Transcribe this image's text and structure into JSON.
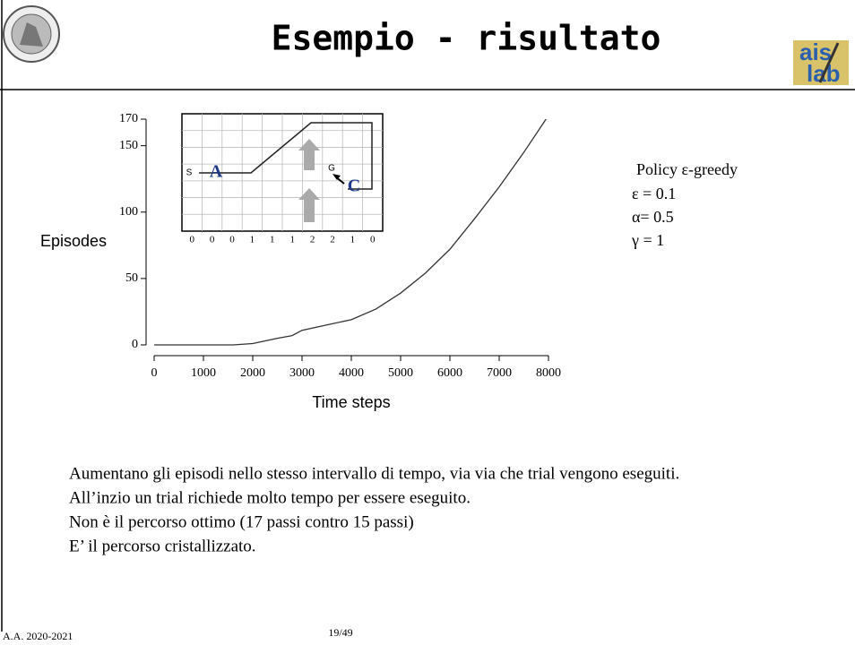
{
  "header": {
    "title": "Esempio - risultato"
  },
  "chart_data": {
    "type": "line",
    "ylabel": "Episodes",
    "xlabel": "Time steps",
    "x": [
      0,
      1600,
      2000,
      2500,
      2800,
      3000,
      3500,
      4000,
      4500,
      5000,
      5500,
      6000,
      6500,
      7000,
      7500,
      7950
    ],
    "values": [
      0,
      0,
      1,
      5,
      7,
      11,
      15,
      19,
      27,
      39,
      54,
      72,
      95,
      119,
      145,
      170
    ],
    "color": "#333333",
    "xlim": [
      0,
      8000
    ],
    "xticks": [
      0,
      1000,
      2000,
      3000,
      4000,
      5000,
      6000,
      7000,
      8000
    ],
    "ylim": [
      0,
      170
    ],
    "yticks": [
      0,
      50,
      100,
      150,
      170
    ]
  },
  "inset": {
    "start": "S",
    "goal": "G",
    "label_a": "A",
    "label_c": "C",
    "wind": [
      0,
      0,
      0,
      1,
      1,
      1,
      2,
      2,
      1,
      0
    ]
  },
  "policy": [
    "Policy ε-greedy",
    "ε = 0.1",
    "α= 0.5",
    "γ = 1"
  ],
  "body": [
    "Aumentano gli episodi nello stesso intervallo di tempo, via via che trial vengono eseguiti.",
    "All’inzio un trial richiede molto tempo per essere eseguito.",
    "Non è il percorso ottimo (17 passi contro 15 passi)",
    "E’ il percorso cristallizzato."
  ],
  "footer": {
    "left": "A.A. 2020-2021",
    "page": "19/49"
  }
}
